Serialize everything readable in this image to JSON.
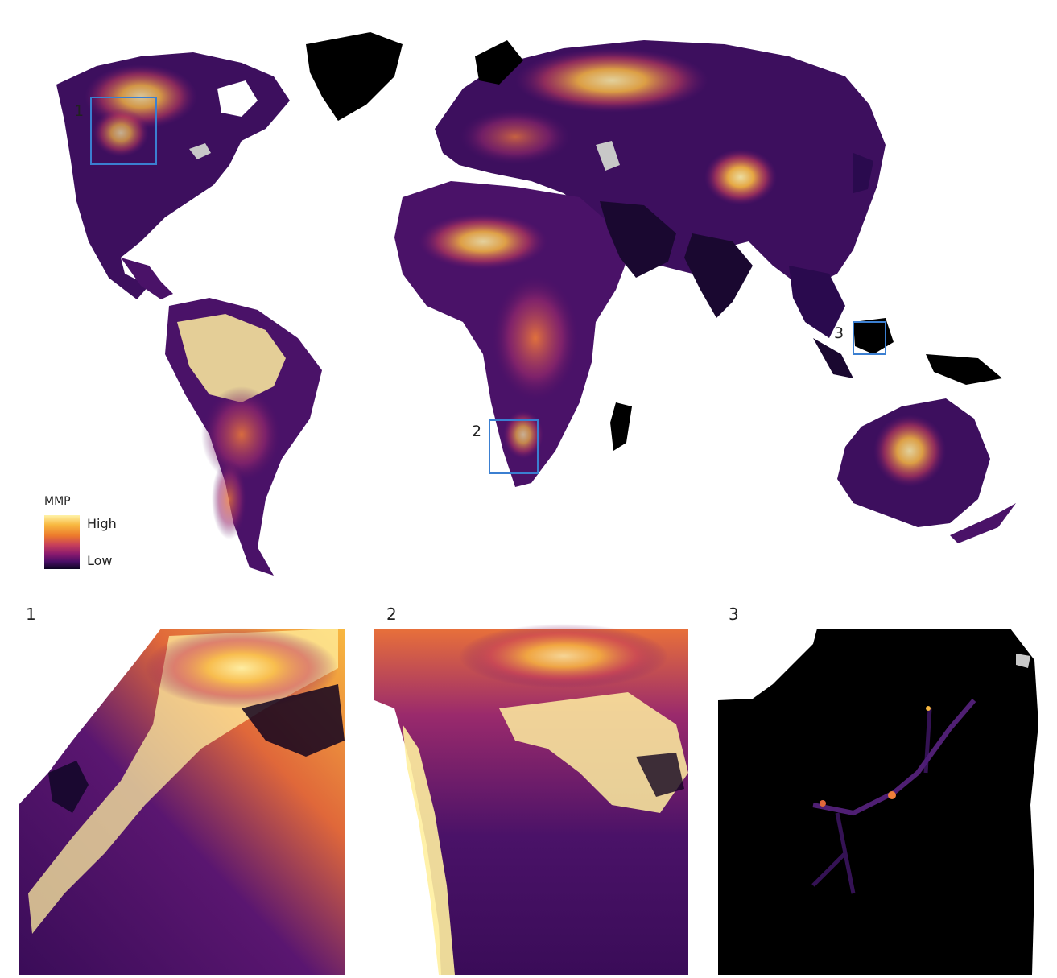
{
  "legend": {
    "title": "MMP",
    "high_label": "High",
    "low_label": "Low",
    "gradient_colors": [
      "#fff3a8",
      "#f8b840",
      "#ec7a2c",
      "#c8405a",
      "#8a1a6e",
      "#4a0e66",
      "#0d0522"
    ]
  },
  "map": {
    "inset_boxes": [
      {
        "label": "1"
      },
      {
        "label": "2"
      },
      {
        "label": "3"
      }
    ],
    "colors": {
      "ocean": "#ffffff",
      "land_low": "#2a0a4e",
      "land_mid": "#7a1e72",
      "land_high": "#f4a23a",
      "land_peak": "#fff0a0",
      "no_data": "#000000",
      "lakes": "#c8c8c8",
      "inset_box": "#3b7fd1"
    }
  },
  "panels": [
    {
      "label": "1"
    },
    {
      "label": "2"
    },
    {
      "label": "3"
    }
  ]
}
